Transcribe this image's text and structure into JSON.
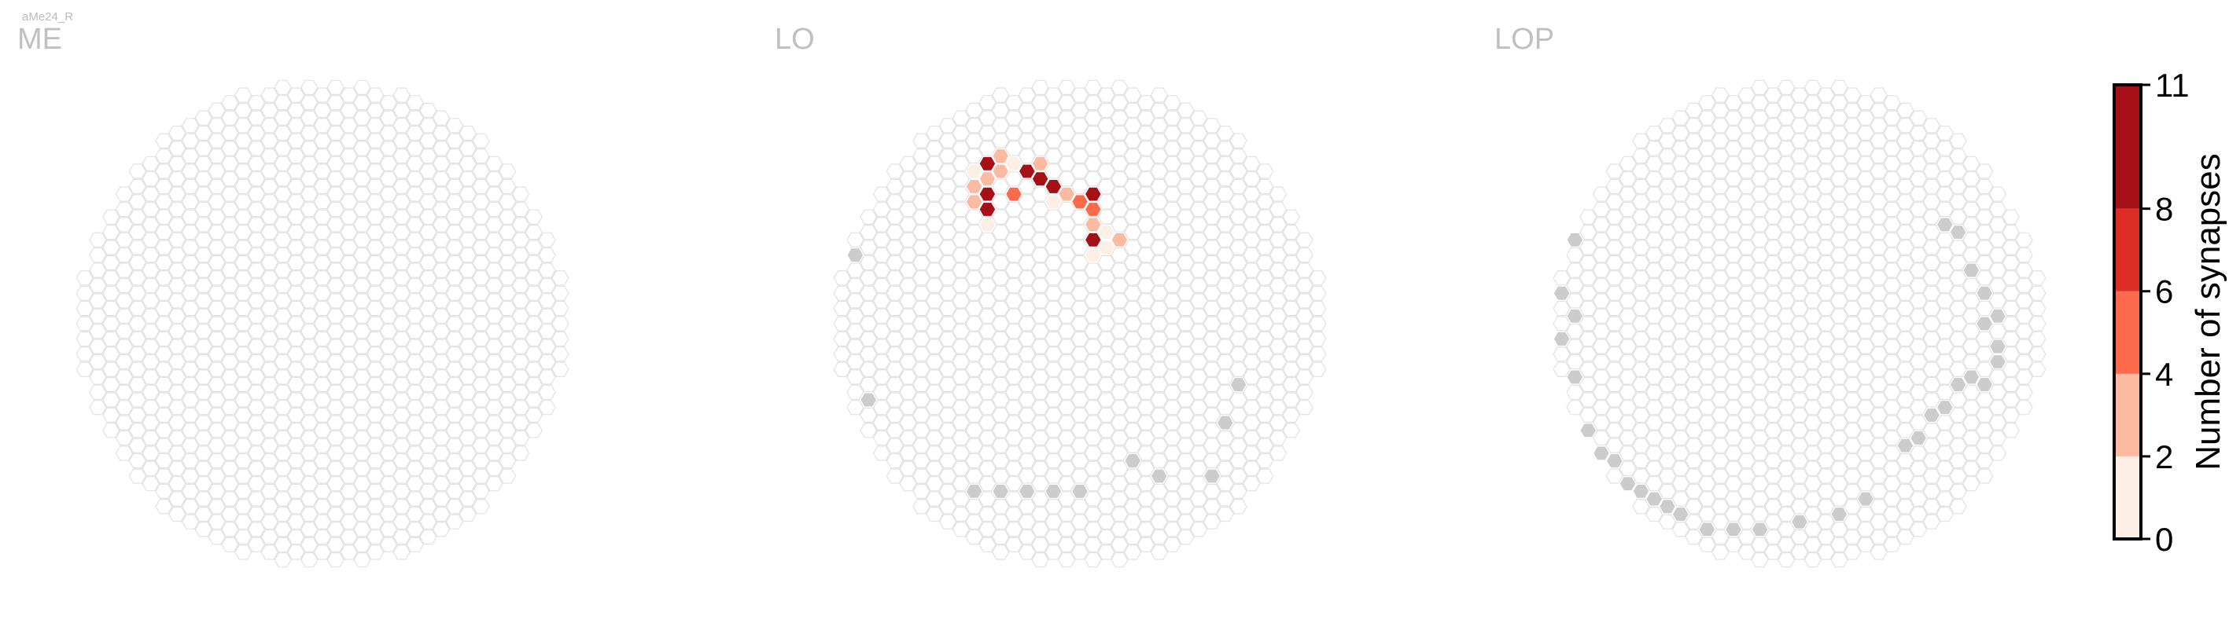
{
  "neuron_label": "aMe24_R",
  "panels": [
    {
      "title": "ME"
    },
    {
      "title": "LO"
    },
    {
      "title": "LOP"
    }
  ],
  "colorbar": {
    "label": "Number of synapses",
    "ticks": [
      "0",
      "2",
      "4",
      "6",
      "8",
      "11"
    ],
    "colors": [
      "#fdeee6",
      "#fcbba1",
      "#fb6a4a",
      "#de2d26",
      "#a50f15"
    ]
  },
  "colors": {
    "empty_outline": "#e2e2e2",
    "edge_gray": "#cccccc",
    "title_gray": "#c0c0c0"
  },
  "chart_data": {
    "type": "heatmap",
    "description_units": "synapse count per hexagonal column",
    "value_range": [
      0,
      11
    ],
    "bins": [
      [
        0,
        2
      ],
      [
        2,
        4
      ],
      [
        4,
        6
      ],
      [
        6,
        8
      ],
      [
        8,
        11
      ]
    ],
    "panels": [
      {
        "name": "ME",
        "values": []
      },
      {
        "name": "LO",
        "values": [
          {
            "col": -7,
            "row": -11,
            "value": 9
          },
          {
            "col": -6,
            "row": -11,
            "value": 3
          },
          {
            "col": -7,
            "row": -10,
            "value": 3
          },
          {
            "col": -6,
            "row": -10,
            "value": 3
          },
          {
            "col": -5,
            "row": -11,
            "value": 1
          },
          {
            "col": -8,
            "row": -10,
            "value": 1
          },
          {
            "col": -4,
            "row": -10,
            "value": 10
          },
          {
            "col": -3,
            "row": -10,
            "value": 10
          },
          {
            "col": -2,
            "row": -9,
            "value": 8
          },
          {
            "col": -3,
            "row": -11,
            "value": 3
          },
          {
            "col": -1,
            "row": -9,
            "value": 3
          },
          {
            "col": -8,
            "row": -9,
            "value": 3
          },
          {
            "col": -7,
            "row": -9,
            "value": 11
          },
          {
            "col": -5,
            "row": -9,
            "value": 5
          },
          {
            "col": -7,
            "row": -8,
            "value": 10
          },
          {
            "col": -8,
            "row": -8,
            "value": 3
          },
          {
            "col": 1,
            "row": -9,
            "value": 11
          },
          {
            "col": 1,
            "row": -8,
            "value": 5
          },
          {
            "col": 0,
            "row": -8,
            "value": 5
          },
          {
            "col": 1,
            "row": -7,
            "value": 3
          },
          {
            "col": 1,
            "row": -6,
            "value": 8
          },
          {
            "col": 3,
            "row": -6,
            "value": 3
          },
          {
            "col": 2,
            "row": -6,
            "value": 1
          },
          {
            "col": 2,
            "row": -5,
            "value": 1
          },
          {
            "col": 1,
            "row": -5,
            "value": 1
          },
          {
            "col": -7,
            "row": -7,
            "value": 1
          },
          {
            "col": -2,
            "row": -8,
            "value": 1
          }
        ]
      },
      {
        "name": "LOP",
        "values": []
      }
    ]
  }
}
